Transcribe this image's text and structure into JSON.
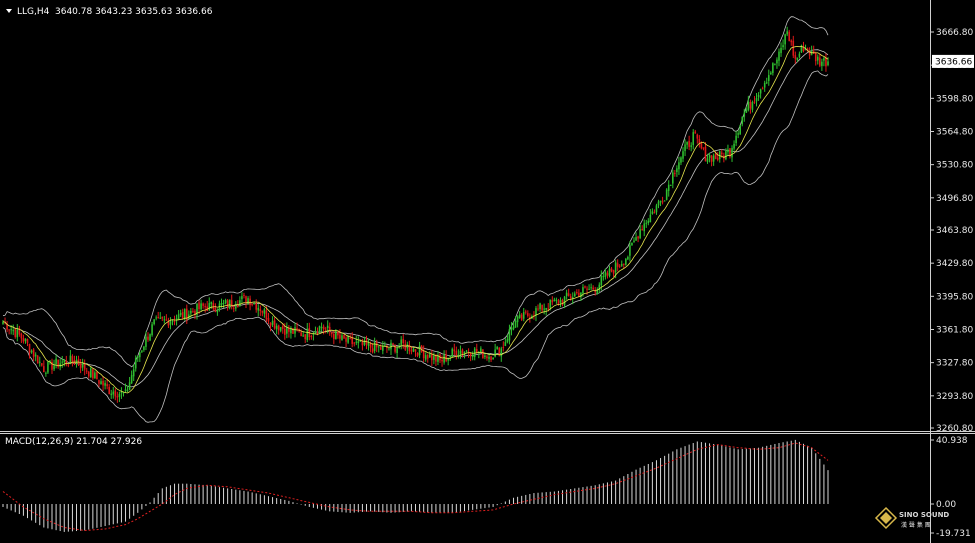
{
  "header": {
    "symbol": "LLG,H4",
    "ohlc": "3640.78 3643.23 3635.63 3636.66",
    "macd_label": "MACD(12,26,9) 21.704 27.926"
  },
  "logo": {
    "line1": "SINO SOUND",
    "line2": "漢 聲 集 團"
  },
  "colors": {
    "background": "#000000",
    "bull": "#2fbf2f",
    "bear": "#e01818",
    "band": "#c0c0c0",
    "ma": "#e6e64d",
    "macd_hist": "#d8d8d8",
    "signal": "#e02020",
    "current_price_box": "#ffffff"
  },
  "chart_data": [
    {
      "type": "candlestick",
      "symbol": "LLG",
      "timeframe": "H4",
      "current_price": 3636.66,
      "current_price_label": "3636.66",
      "ylim": [
        3255.0,
        3700.0
      ],
      "y_ticks": [
        3666.8,
        3632.8,
        3598.8,
        3564.8,
        3530.8,
        3496.8,
        3463.8,
        3429.8,
        3395.8,
        3361.8,
        3327.8,
        3293.8,
        3260.8
      ],
      "y_tick_labels": [
        "3666.80",
        "3632.80",
        "3598.80",
        "3564.80",
        "3530.80",
        "3496.80",
        "3463.80",
        "3429.80",
        "3395.80",
        "3361.80",
        "3327.80",
        "3293.80",
        "3260.80"
      ],
      "indicators": [
        "Bollinger Bands",
        "Moving Average"
      ],
      "close_path": [
        [
          0,
          3370
        ],
        [
          10,
          3352
        ],
        [
          20,
          3322
        ],
        [
          28,
          3328
        ],
        [
          36,
          3330
        ],
        [
          44,
          3315
        ],
        [
          52,
          3300
        ],
        [
          60,
          3295
        ],
        [
          66,
          3335
        ],
        [
          74,
          3368
        ],
        [
          82,
          3372
        ],
        [
          90,
          3378
        ],
        [
          98,
          3385
        ],
        [
          106,
          3386
        ],
        [
          114,
          3390
        ],
        [
          120,
          3394
        ],
        [
          126,
          3384
        ],
        [
          132,
          3369
        ],
        [
          140,
          3360
        ],
        [
          148,
          3357
        ],
        [
          156,
          3365
        ],
        [
          166,
          3351
        ],
        [
          176,
          3345
        ],
        [
          186,
          3342
        ],
        [
          196,
          3346
        ],
        [
          206,
          3338
        ],
        [
          214,
          3329
        ],
        [
          222,
          3340
        ],
        [
          230,
          3340
        ],
        [
          238,
          3335
        ],
        [
          244,
          3342
        ],
        [
          250,
          3368
        ],
        [
          258,
          3378
        ],
        [
          266,
          3386
        ],
        [
          274,
          3392
        ],
        [
          282,
          3400
        ],
        [
          290,
          3405
        ],
        [
          298,
          3422
        ],
        [
          306,
          3438
        ],
        [
          312,
          3465
        ],
        [
          318,
          3482
        ],
        [
          324,
          3500
        ],
        [
          330,
          3532
        ],
        [
          338,
          3560
        ],
        [
          344,
          3540
        ],
        [
          350,
          3538
        ],
        [
          356,
          3545
        ],
        [
          362,
          3580
        ],
        [
          368,
          3600
        ],
        [
          374,
          3620
        ],
        [
          380,
          3642
        ],
        [
          384,
          3668
        ],
        [
          388,
          3638
        ],
        [
          392,
          3652
        ],
        [
          396,
          3644
        ],
        [
          400,
          3637
        ],
        [
          404,
          3636.66
        ]
      ]
    },
    {
      "type": "histogram",
      "name": "MACD(12,26,9)",
      "macd": 21.704,
      "signal": 27.926,
      "ylim": [
        -19.731,
        40.938
      ],
      "y_tick_labels": [
        "40.938",
        "0.00",
        "-19.731"
      ],
      "macd_path": [
        [
          0,
          -2
        ],
        [
          10,
          -8
        ],
        [
          20,
          -16
        ],
        [
          30,
          -19
        ],
        [
          40,
          -18
        ],
        [
          50,
          -15
        ],
        [
          60,
          -12
        ],
        [
          66,
          -6
        ],
        [
          72,
          1
        ],
        [
          78,
          10
        ],
        [
          84,
          13
        ],
        [
          90,
          13
        ],
        [
          100,
          12
        ],
        [
          110,
          10
        ],
        [
          120,
          8
        ],
        [
          130,
          5
        ],
        [
          140,
          2
        ],
        [
          150,
          -2
        ],
        [
          160,
          -5
        ],
        [
          170,
          -6
        ],
        [
          180,
          -5
        ],
        [
          190,
          -6
        ],
        [
          200,
          -5
        ],
        [
          210,
          -6
        ],
        [
          220,
          -6
        ],
        [
          230,
          -4
        ],
        [
          240,
          -2
        ],
        [
          250,
          4
        ],
        [
          260,
          7
        ],
        [
          270,
          8
        ],
        [
          280,
          10
        ],
        [
          290,
          12
        ],
        [
          300,
          15
        ],
        [
          310,
          22
        ],
        [
          320,
          28
        ],
        [
          330,
          35
        ],
        [
          340,
          40
        ],
        [
          350,
          38
        ],
        [
          360,
          35
        ],
        [
          370,
          36
        ],
        [
          380,
          39
        ],
        [
          388,
          41
        ],
        [
          396,
          36
        ],
        [
          404,
          21.7
        ]
      ],
      "signal_path": [
        [
          0,
          8
        ],
        [
          10,
          -2
        ],
        [
          20,
          -10
        ],
        [
          30,
          -16
        ],
        [
          40,
          -18
        ],
        [
          50,
          -17
        ],
        [
          60,
          -14
        ],
        [
          66,
          -10
        ],
        [
          72,
          -5
        ],
        [
          78,
          0
        ],
        [
          84,
          6
        ],
        [
          90,
          10
        ],
        [
          100,
          12
        ],
        [
          110,
          11
        ],
        [
          120,
          9
        ],
        [
          130,
          7
        ],
        [
          140,
          4
        ],
        [
          150,
          1
        ],
        [
          160,
          -2
        ],
        [
          170,
          -4
        ],
        [
          180,
          -5
        ],
        [
          190,
          -5
        ],
        [
          200,
          -5
        ],
        [
          210,
          -6
        ],
        [
          220,
          -6
        ],
        [
          230,
          -5
        ],
        [
          240,
          -4
        ],
        [
          250,
          0
        ],
        [
          260,
          3
        ],
        [
          270,
          6
        ],
        [
          280,
          8
        ],
        [
          290,
          10
        ],
        [
          300,
          13
        ],
        [
          310,
          18
        ],
        [
          320,
          23
        ],
        [
          330,
          29
        ],
        [
          340,
          35
        ],
        [
          350,
          38
        ],
        [
          360,
          36
        ],
        [
          370,
          35
        ],
        [
          380,
          36
        ],
        [
          388,
          39
        ],
        [
          396,
          36
        ],
        [
          404,
          27.9
        ]
      ]
    }
  ]
}
